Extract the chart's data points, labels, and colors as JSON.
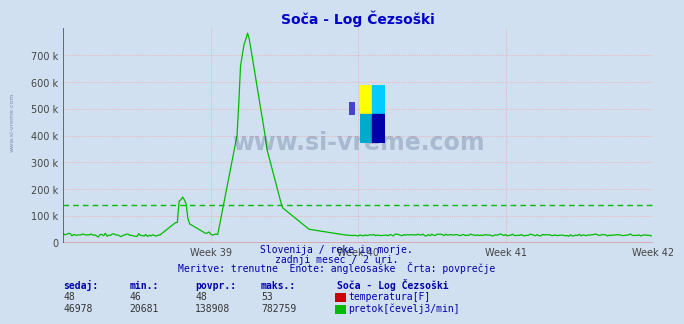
{
  "title": "Soča - Log Čezsoški",
  "title_color": "#0000cc",
  "bg_color": "#d0e0f0",
  "plot_bg_color": "#d0e0f0",
  "grid_color": "#ff9999",
  "ylabel_left": "",
  "xlabel": "",
  "xlim": [
    0,
    336
  ],
  "ylim": [
    0,
    800000
  ],
  "yticks": [
    0,
    100000,
    200000,
    300000,
    400000,
    500000,
    600000,
    700000
  ],
  "ytick_labels": [
    "0",
    "100 k",
    "200 k",
    "300 k",
    "400 k",
    "500 k",
    "600 k",
    "700 k"
  ],
  "week_ticks": [
    84,
    168,
    252,
    336
  ],
  "week_labels": [
    "Week 39",
    "Week 40",
    "Week 41",
    "Week 42"
  ],
  "temp_color": "#cc0000",
  "flow_color": "#00bb00",
  "avg_flow": 138908,
  "watermark_color": "#1a3060",
  "watermark_text": "www.si-vreme.com",
  "sidebar_text": "www.si-vreme.com",
  "footer_line1": "Slovenija / reke in morje.",
  "footer_line2": "zadnji mesec / 2 uri.",
  "footer_line3": "Meritve: trenutne  Enote: angleosaške  Črta: povprečje",
  "footer_color": "#0000aa",
  "table_headers": [
    "sedaj:",
    "min.:",
    "povpr.:",
    "maks.:",
    "Soča - Log Čezsoški"
  ],
  "table_row1": [
    "48",
    "46",
    "48",
    "53"
  ],
  "table_row2": [
    "46978",
    "20681",
    "138908",
    "782759"
  ],
  "table_color": "#0000aa",
  "table_label1": "temperatura[F]",
  "table_label2": "pretok[čevelj3/min]",
  "logo_yellow": "#ffff00",
  "logo_cyan": "#00ccff",
  "logo_blue": "#0000aa",
  "logo_teal": "#00aacc"
}
